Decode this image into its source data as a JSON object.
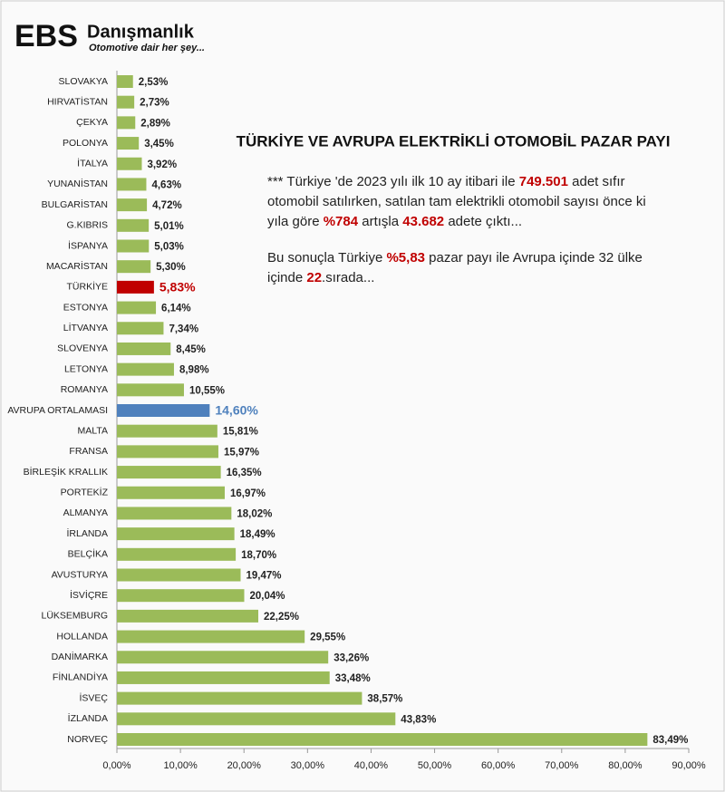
{
  "logo": {
    "brand": "EBS",
    "name": "Danışmanlık",
    "tagline": "Otomotive dair her şey..."
  },
  "chart_data": {
    "type": "hbar",
    "title": "TÜRKİYE VE AVRUPA ELEKTRİKLİ OTOMOBİL PAZAR PAYI",
    "notes": [
      [
        {
          "text": "*** Türkiye 'de 2023 yılı ilk 10 ay itibari ile ",
          "highlight": false
        },
        {
          "text": "749.501",
          "highlight": true
        },
        {
          "text": " adet sıfır otomobil satılırken, satılan tam elektrikli otomobil sayısı önce ki yıla göre ",
          "highlight": false
        },
        {
          "text": "%784",
          "highlight": true
        },
        {
          "text": " artışla ",
          "highlight": false
        },
        {
          "text": "43.682",
          "highlight": true
        },
        {
          "text": " adete çıktı...",
          "highlight": false
        }
      ],
      [
        {
          "text": "Bu sonuçla Türkiye ",
          "highlight": false
        },
        {
          "text": "%5,83",
          "highlight": true
        },
        {
          "text": " pazar payı ile Avrupa içinde 32 ülke içinde ",
          "highlight": false
        },
        {
          "text": "22",
          "highlight": true
        },
        {
          "text": ".sırada...",
          "highlight": false
        }
      ]
    ],
    "highlight_color": "#c00000",
    "categories": [
      "SLOVAKYA",
      "HIRVATİSTAN",
      "ÇEKYA",
      "POLONYA",
      "İTALYA",
      "YUNANİSTAN",
      "BULGARİSTAN",
      "G.KIBRIS",
      "İSPANYA",
      "MACARİSTAN",
      "TÜRKİYE",
      "ESTONYA",
      "LİTVANYA",
      "SLOVENYA",
      "LETONYA",
      "ROMANYA",
      "AVRUPA ORTALAMASI",
      "MALTA",
      "FRANSA",
      "BİRLEŞİK KRALLIK",
      "PORTEKİZ",
      "ALMANYA",
      "İRLANDA",
      "BELÇİKA",
      "AVUSTURYA",
      "İSVİÇRE",
      "LÜKSEMBURG",
      "HOLLANDA",
      "DANİMARKA",
      "FİNLANDİYA",
      "İSVEÇ",
      "İZLANDA",
      "NORVEÇ"
    ],
    "values": [
      2.53,
      2.73,
      2.89,
      3.45,
      3.92,
      4.63,
      4.72,
      5.01,
      5.03,
      5.3,
      5.83,
      6.14,
      7.34,
      8.45,
      8.98,
      10.55,
      14.6,
      15.81,
      15.97,
      16.35,
      16.97,
      18.02,
      18.49,
      18.7,
      19.47,
      20.04,
      22.25,
      29.55,
      33.26,
      33.48,
      38.57,
      43.83,
      83.49
    ],
    "value_labels": [
      "2,53%",
      "2,73%",
      "2,89%",
      "3,45%",
      "3,92%",
      "4,63%",
      "4,72%",
      "5,01%",
      "5,03%",
      "5,30%",
      "5,83%",
      "6,14%",
      "7,34%",
      "8,45%",
      "8,98%",
      "10,55%",
      "14,60%",
      "15,81%",
      "15,97%",
      "16,35%",
      "16,97%",
      "18,02%",
      "18,49%",
      "18,70%",
      "19,47%",
      "20,04%",
      "22,25%",
      "29,55%",
      "33,26%",
      "33,48%",
      "38,57%",
      "43,83%",
      "83,49%"
    ],
    "color": "#9bbb59",
    "colors": [
      "#9bbb59",
      "#9bbb59",
      "#9bbb59",
      "#9bbb59",
      "#9bbb59",
      "#9bbb59",
      "#9bbb59",
      "#9bbb59",
      "#9bbb59",
      "#9bbb59",
      "#c00000",
      "#9bbb59",
      "#9bbb59",
      "#9bbb59",
      "#9bbb59",
      "#9bbb59",
      "#4f81bd",
      "#9bbb59",
      "#9bbb59",
      "#9bbb59",
      "#9bbb59",
      "#9bbb59",
      "#9bbb59",
      "#9bbb59",
      "#9bbb59",
      "#9bbb59",
      "#9bbb59",
      "#9bbb59",
      "#9bbb59",
      "#9bbb59",
      "#9bbb59",
      "#9bbb59",
      "#9bbb59"
    ],
    "xlim": [
      0,
      90
    ],
    "xticks": [
      {
        "value": 0,
        "label": "0,00%"
      },
      {
        "value": 10,
        "label": "10,00%"
      },
      {
        "value": 20,
        "label": "20,00%"
      },
      {
        "value": 30,
        "label": "30,00%"
      },
      {
        "value": 40,
        "label": "40,00%"
      },
      {
        "value": 50,
        "label": "50,00%"
      },
      {
        "value": 60,
        "label": "60,00%"
      },
      {
        "value": 70,
        "label": "70,00%"
      },
      {
        "value": 80,
        "label": "80,00%"
      },
      {
        "value": 90,
        "label": "90,00%"
      }
    ],
    "grid": false
  }
}
